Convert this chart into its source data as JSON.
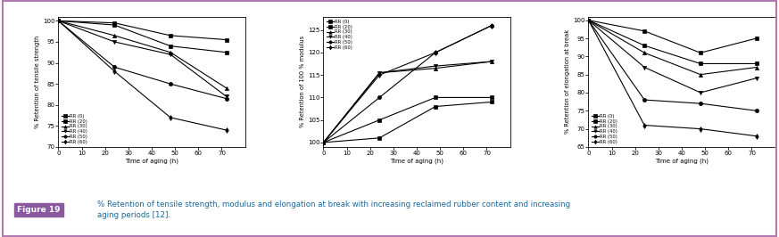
{
  "x": [
    0,
    24,
    48,
    72
  ],
  "legend_labels": [
    "RR (0)",
    "RR (20)",
    "RR (30)",
    "RR (40)",
    "RR (50)",
    "RR (60)"
  ],
  "markers": [
    "s",
    "s",
    "^",
    "v",
    "o",
    "d"
  ],
  "chart1": {
    "ylabel": "% Retention of tensile strength",
    "xlabel": "Time of aging (h)",
    "ylim": [
      70,
      101
    ],
    "yticks": [
      70,
      75,
      80,
      85,
      90,
      95,
      100
    ],
    "xlim": [
      0,
      80
    ],
    "xticks": [
      0,
      10,
      20,
      30,
      40,
      50,
      60,
      70
    ],
    "legend_loc": "lower left",
    "series": [
      [
        100,
        99.5,
        96.5,
        95.5
      ],
      [
        100,
        99,
        94,
        92.5
      ],
      [
        100,
        96.5,
        92.5,
        84
      ],
      [
        100,
        95,
        92,
        82
      ],
      [
        100,
        89,
        85,
        81.5
      ],
      [
        100,
        88,
        77,
        74
      ]
    ]
  },
  "chart2": {
    "ylabel": "% Retention of 100 % modulus",
    "xlabel": "Time of aging (h)",
    "ylim": [
      99,
      128
    ],
    "yticks": [
      100,
      105,
      110,
      115,
      120,
      125
    ],
    "xlim": [
      0,
      80
    ],
    "xticks": [
      0,
      10,
      20,
      30,
      40,
      50,
      60,
      70
    ],
    "legend_loc": "upper left",
    "series": [
      [
        100,
        101,
        108,
        109
      ],
      [
        100,
        105,
        110,
        110
      ],
      [
        100,
        115.5,
        116.5,
        118
      ],
      [
        100,
        115.5,
        117,
        118
      ],
      [
        100,
        110,
        120,
        126
      ],
      [
        100,
        115,
        120,
        126
      ]
    ]
  },
  "chart3": {
    "ylabel": "% Retention of elongation at break",
    "xlabel": "Time of aging (h)",
    "ylim": [
      65,
      101
    ],
    "yticks": [
      65,
      70,
      75,
      80,
      85,
      90,
      95,
      100
    ],
    "xlim": [
      0,
      80
    ],
    "xticks": [
      0,
      10,
      20,
      30,
      40,
      50,
      60,
      70
    ],
    "legend_loc": "lower left",
    "series": [
      [
        100,
        97,
        91,
        95
      ],
      [
        100,
        93,
        88,
        88
      ],
      [
        100,
        91,
        85,
        87
      ],
      [
        100,
        87,
        80,
        84
      ],
      [
        100,
        78,
        77,
        75
      ],
      [
        100,
        71,
        70,
        68
      ]
    ]
  },
  "caption_label": "Figure 19",
  "caption_text": "% Retention of tensile strength, modulus and elongation at break with increasing reclaimed rubber content and increasing\naging periods [12].",
  "border_color": "#b07ab0",
  "label_bg_color": "#8b5a9e",
  "label_text_color": "#ffffff",
  "caption_text_color": "#1a6699",
  "bg_color": "#ffffff"
}
